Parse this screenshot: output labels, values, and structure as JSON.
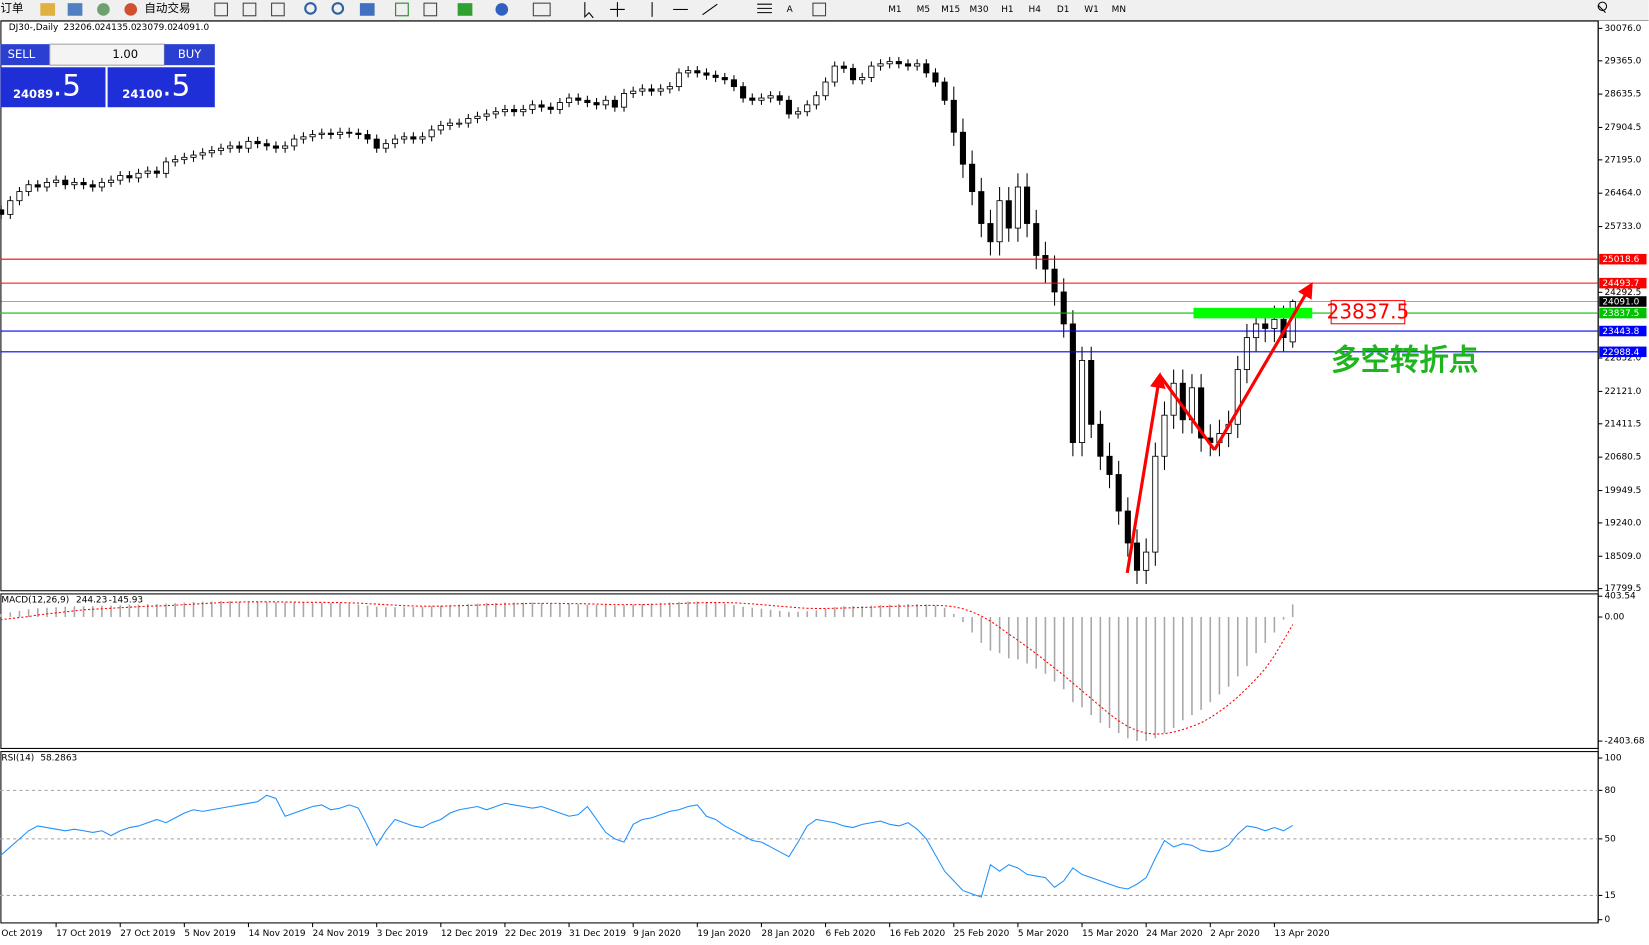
{
  "toolbar": {
    "order": "订单",
    "auto_trading": "自动交易",
    "timeframes": [
      "M1",
      "M5",
      "M15",
      "M30",
      "H1",
      "H4",
      "D1",
      "W1",
      "MN"
    ]
  },
  "trade_panel": {
    "sell": "SELL",
    "buy": "BUY",
    "lots": "1.00",
    "bid": {
      "main": "24089",
      "pips": ".5"
    },
    "ask": {
      "main": "24100",
      "pips": ".5"
    }
  },
  "annotations": {
    "price_box": "23837.5",
    "note": "多空转折点"
  },
  "chart_data": [
    {
      "type": "candlestick",
      "title": "DJ30-,Daily",
      "ohlc_labels": [
        "23206.0",
        "24135.0",
        "23079.0",
        "24091.0"
      ],
      "categories": [
        "Oct 2019",
        null,
        null,
        null,
        null,
        null,
        null,
        "17 Oct 2019",
        null,
        null,
        null,
        null,
        null,
        null,
        "27 Oct 2019",
        null,
        null,
        null,
        null,
        null,
        null,
        "5 Nov 2019",
        null,
        null,
        null,
        null,
        null,
        null,
        "14 Nov 2019",
        null,
        null,
        null,
        null,
        null,
        null,
        "24 Nov 2019",
        null,
        null,
        null,
        null,
        null,
        null,
        "3 Dec 2019",
        null,
        null,
        null,
        null,
        null,
        null,
        "12 Dec 2019",
        null,
        null,
        null,
        null,
        null,
        null,
        "22 Dec 2019",
        null,
        null,
        null,
        null,
        null,
        null,
        "31 Dec 2019",
        null,
        null,
        null,
        null,
        null,
        null,
        "9 Jan 2020",
        null,
        null,
        null,
        null,
        null,
        null,
        "19 Jan 2020",
        null,
        null,
        null,
        null,
        null,
        null,
        "28 Jan 2020",
        null,
        null,
        null,
        null,
        null,
        null,
        "6 Feb 2020",
        null,
        null,
        null,
        null,
        null,
        null,
        "16 Feb 2020",
        null,
        null,
        null,
        null,
        null,
        null,
        "25 Feb 2020",
        null,
        null,
        null,
        null,
        null,
        null,
        "5 Mar 2020",
        null,
        null,
        null,
        null,
        null,
        null,
        "15 Mar 2020",
        null,
        null,
        null,
        null,
        null,
        null,
        "24 Mar 2020",
        null,
        null,
        null,
        null,
        null,
        null,
        "2 Apr 2020",
        null,
        null,
        null,
        null,
        null,
        null,
        "13 Apr 2020",
        null,
        null
      ],
      "open": [
        26200,
        26100,
        26000,
        26300,
        26500,
        26650,
        26600,
        26700,
        26750,
        26650,
        26700,
        26650,
        26600,
        26700,
        26750,
        26850,
        26800,
        26900,
        26950,
        26900,
        27150,
        27200,
        27250,
        27300,
        27350,
        27400,
        27450,
        27500,
        27450,
        27600,
        27550,
        27500,
        27450,
        27500,
        27650,
        27700,
        27750,
        27780,
        27750,
        27800,
        27780,
        27750,
        27650,
        27450,
        27550,
        27650,
        27700,
        27650,
        27700,
        27850,
        27950,
        28000,
        28000,
        28100,
        28150,
        28200,
        28250,
        28300,
        28250,
        28300,
        28400,
        28350,
        28300,
        28450,
        28550,
        28500,
        28450,
        28400,
        28500,
        28350,
        28650,
        28700,
        28750,
        28700,
        28750,
        28800,
        29100,
        29150,
        29100,
        29050,
        29000,
        28950,
        28800,
        28550,
        28500,
        28550,
        28600,
        28500,
        28200,
        28250,
        28400,
        28600,
        28900,
        29250,
        29200,
        28950,
        29000,
        29250,
        29300,
        29350,
        29300,
        29250,
        29300,
        29100,
        28900,
        28500,
        27800,
        27100,
        26500,
        25800,
        25400,
        26300,
        25700,
        26600,
        25800,
        25100,
        24800,
        24300,
        23600,
        21000,
        22800,
        21400,
        20700,
        20300,
        19500,
        18800,
        18200,
        18600,
        20700,
        21600,
        22300,
        21500,
        22200,
        21100,
        21000,
        21200,
        21400,
        22600,
        23300,
        23600,
        23500,
        23700,
        23206
      ],
      "high": [
        26300,
        26200,
        26400,
        26600,
        26750,
        26750,
        26800,
        26850,
        26850,
        26800,
        26800,
        26750,
        26800,
        26850,
        26950,
        26950,
        27000,
        27050,
        27050,
        27250,
        27300,
        27350,
        27400,
        27450,
        27500,
        27550,
        27600,
        27600,
        27700,
        27700,
        27650,
        27600,
        27600,
        27750,
        27800,
        27850,
        27880,
        27880,
        27900,
        27900,
        27880,
        27850,
        27750,
        27650,
        27750,
        27800,
        27800,
        27800,
        27950,
        28050,
        28100,
        28100,
        28200,
        28250,
        28300,
        28350,
        28400,
        28400,
        28400,
        28500,
        28500,
        28450,
        28550,
        28650,
        28650,
        28600,
        28550,
        28600,
        28600,
        28750,
        28800,
        28850,
        28850,
        28850,
        28900,
        29200,
        29250,
        29250,
        29200,
        29150,
        29100,
        29050,
        28900,
        28650,
        28650,
        28700,
        28700,
        28600,
        28350,
        28500,
        28700,
        29000,
        29350,
        29350,
        29300,
        29100,
        29350,
        29400,
        29450,
        29450,
        29400,
        29400,
        29400,
        29200,
        29000,
        28800,
        28100,
        27400,
        26800,
        26100,
        26600,
        26600,
        26900,
        26900,
        26100,
        25400,
        25100,
        24600,
        23900,
        23100,
        23100,
        21700,
        21000,
        20600,
        19800,
        19100,
        18900,
        21000,
        21900,
        22600,
        22600,
        22500,
        22500,
        21400,
        21500,
        21700,
        22900,
        23600,
        23900,
        23900,
        24000,
        24000,
        24135
      ],
      "low": [
        26000,
        25900,
        25900,
        26200,
        26400,
        26500,
        26500,
        26600,
        26550,
        26550,
        26550,
        26500,
        26500,
        26600,
        26650,
        26700,
        26700,
        26800,
        26800,
        26800,
        27050,
        27100,
        27150,
        27200,
        27250,
        27300,
        27350,
        27350,
        27350,
        27450,
        27400,
        27350,
        27350,
        27400,
        27550,
        27600,
        27650,
        27650,
        27650,
        27680,
        27650,
        27550,
        27350,
        27350,
        27450,
        27550,
        27550,
        27550,
        27600,
        27750,
        27850,
        27900,
        27900,
        28000,
        28050,
        28100,
        28150,
        28150,
        28150,
        28200,
        28250,
        28200,
        28200,
        28350,
        28400,
        28350,
        28300,
        28300,
        28250,
        28250,
        28550,
        28600,
        28600,
        28600,
        28650,
        28700,
        29000,
        29000,
        28950,
        28900,
        28850,
        28700,
        28450,
        28400,
        28400,
        28450,
        28400,
        28100,
        28100,
        28150,
        28300,
        28500,
        28800,
        29100,
        28850,
        28850,
        28900,
        29150,
        29200,
        29200,
        29150,
        29150,
        29000,
        28800,
        28400,
        27500,
        26800,
        26200,
        25500,
        25100,
        25100,
        25400,
        25400,
        25500,
        24800,
        24500,
        24000,
        23300,
        20700,
        20700,
        21100,
        20400,
        20000,
        19200,
        18500,
        17900,
        17900,
        18300,
        20400,
        21300,
        21200,
        21200,
        20800,
        20700,
        20700,
        20900,
        21100,
        22300,
        23000,
        23200,
        23200,
        23000,
        23079
      ],
      "close": [
        26100,
        26000,
        26300,
        26500,
        26650,
        26600,
        26700,
        26750,
        26650,
        26700,
        26650,
        26600,
        26700,
        26750,
        26850,
        26800,
        26900,
        26950,
        26900,
        27150,
        27200,
        27250,
        27300,
        27350,
        27400,
        27450,
        27500,
        27450,
        27600,
        27550,
        27500,
        27450,
        27500,
        27650,
        27700,
        27750,
        27780,
        27750,
        27800,
        27780,
        27750,
        27650,
        27450,
        27550,
        27650,
        27700,
        27650,
        27700,
        27850,
        27950,
        28000,
        28000,
        28100,
        28150,
        28200,
        28250,
        28300,
        28250,
        28300,
        28400,
        28350,
        28300,
        28450,
        28550,
        28500,
        28450,
        28400,
        28500,
        28350,
        28650,
        28700,
        28750,
        28700,
        28750,
        28800,
        29100,
        29150,
        29100,
        29050,
        29000,
        28950,
        28800,
        28550,
        28500,
        28550,
        28600,
        28500,
        28200,
        28250,
        28400,
        28600,
        28900,
        29250,
        29200,
        28950,
        29000,
        29250,
        29300,
        29350,
        29300,
        29250,
        29300,
        29100,
        28900,
        28500,
        27800,
        27100,
        26500,
        25800,
        25400,
        26300,
        25700,
        26600,
        25800,
        25100,
        24800,
        24300,
        23600,
        21000,
        22800,
        21400,
        20700,
        20300,
        19500,
        18800,
        18200,
        18600,
        20700,
        21600,
        22300,
        21500,
        22200,
        21100,
        21000,
        21200,
        21400,
        22600,
        23300,
        23600,
        23500,
        23700,
        23300,
        24091
      ],
      "up_color": "#ffffff",
      "down_color": "#000000",
      "ylim": [
        17753,
        30237
      ],
      "yticks": [
        {
          "value": 30076,
          "label": "30076.0"
        },
        {
          "value": 29365,
          "label": "29365.0"
        },
        28635.5,
        27904.5,
        {
          "value": 27195,
          "label": "27195.0"
        },
        {
          "value": 26464,
          "label": "26464.0"
        },
        {
          "value": 25733,
          "label": "25733.0"
        },
        24292.5,
        {
          "value": 22852,
          "label": "22852.0"
        },
        {
          "value": 22121,
          "label": "22121.0"
        },
        21411.5,
        20680.5,
        19949.5,
        {
          "value": 19240,
          "label": "19240.0"
        },
        {
          "value": 18509,
          "label": "18509.0"
        },
        17799.5
      ],
      "levels": [
        {
          "value": 25018.6,
          "color": "#ff0000"
        },
        {
          "value": 24493.7,
          "color": "#ff0000"
        },
        {
          "value": 24091,
          "label": "24091.0",
          "color": "#000000"
        },
        {
          "value": 23837.5,
          "color": "#00c000"
        },
        {
          "value": 23443.8,
          "color": "#0000ff"
        },
        {
          "value": 22988.4,
          "color": "#0000ff"
        }
      ]
    },
    {
      "type": "macd",
      "title": "MACD(12,26,9)",
      "histogram": [
        40,
        60,
        90,
        120,
        150,
        170,
        180,
        190,
        200,
        210,
        210,
        210,
        220,
        220,
        230,
        240,
        240,
        250,
        250,
        260,
        270,
        280,
        290,
        300,
        300,
        310,
        310,
        300,
        300,
        300,
        290,
        290,
        280,
        280,
        280,
        280,
        280,
        270,
        270,
        260,
        240,
        220,
        200,
        190,
        190,
        190,
        190,
        200,
        210,
        220,
        230,
        240,
        250,
        260,
        270,
        270,
        280,
        280,
        280,
        280,
        270,
        260,
        260,
        260,
        250,
        240,
        230,
        230,
        220,
        230,
        240,
        250,
        260,
        270,
        280,
        290,
        300,
        300,
        290,
        280,
        260,
        230,
        200,
        180,
        160,
        140,
        120,
        100,
        100,
        110,
        130,
        160,
        190,
        210,
        210,
        210,
        220,
        230,
        240,
        250,
        250,
        250,
        240,
        220,
        180,
        60,
        -100,
        -300,
        -500,
        -650,
        -700,
        -800,
        -820,
        -900,
        -1000,
        -1100,
        -1250,
        -1400,
        -1650,
        -1750,
        -1900,
        -2050,
        -2150,
        -2250,
        -2350,
        -2400,
        -2400,
        -2350,
        -2250,
        -2150,
        -2000,
        -1900,
        -1800,
        -1650,
        -1500,
        -1350,
        -1150,
        -950,
        -700,
        -500,
        -300,
        -50,
        244.23
      ],
      "signal": [
        -60,
        -50,
        -30,
        -10,
        10,
        40,
        60,
        80,
        100,
        120,
        140,
        150,
        160,
        170,
        180,
        190,
        200,
        210,
        215,
        220,
        230,
        240,
        250,
        260,
        270,
        280,
        285,
        290,
        295,
        295,
        295,
        295,
        290,
        290,
        285,
        285,
        285,
        280,
        280,
        275,
        270,
        260,
        250,
        240,
        230,
        220,
        215,
        210,
        210,
        210,
        215,
        220,
        225,
        230,
        240,
        245,
        250,
        255,
        260,
        265,
        265,
        265,
        265,
        260,
        260,
        255,
        250,
        245,
        240,
        240,
        240,
        240,
        245,
        250,
        255,
        260,
        270,
        275,
        280,
        280,
        280,
        275,
        265,
        255,
        240,
        225,
        210,
        195,
        180,
        170,
        165,
        165,
        170,
        175,
        180,
        185,
        190,
        200,
        205,
        210,
        215,
        220,
        225,
        225,
        220,
        200,
        160,
        100,
        20,
        -80,
        -200,
        -330,
        -450,
        -580,
        -710,
        -850,
        -990,
        -1130,
        -1280,
        -1430,
        -1580,
        -1730,
        -1880,
        -2010,
        -2120,
        -2200,
        -2250,
        -2270,
        -2260,
        -2230,
        -2180,
        -2120,
        -2050,
        -1950,
        -1830,
        -1700,
        -1550,
        -1380,
        -1200,
        -1000,
        -750,
        -450,
        -145.93
      ],
      "histogram_color": "#a8a8a8",
      "signal_color": "#ff0000",
      "ylim": [
        -2546,
        448
      ],
      "yticks": [
        403.54,
        {
          "value": 0,
          "label": "0.00"
        },
        -2403.68
      ]
    },
    {
      "type": "line",
      "title": "RSI(14)",
      "values": [
        38,
        40,
        45,
        50,
        55,
        58,
        57,
        56,
        55,
        56,
        55,
        54,
        55,
        52,
        55,
        57,
        58,
        60,
        62,
        60,
        63,
        66,
        68,
        67,
        68,
        69,
        70,
        71,
        72,
        73,
        77,
        75,
        64,
        66,
        68,
        70,
        71,
        68,
        69,
        71,
        69,
        58,
        46,
        55,
        62,
        60,
        58,
        57,
        60,
        62,
        66,
        68,
        69,
        70,
        68,
        70,
        72,
        71,
        70,
        69,
        70,
        68,
        66,
        64,
        65,
        70,
        62,
        54,
        50,
        48,
        59,
        62,
        63,
        65,
        67,
        68,
        70,
        71,
        64,
        62,
        58,
        55,
        52,
        49,
        48,
        45,
        42,
        39,
        48,
        58,
        62,
        61,
        60,
        58,
        57,
        59,
        60,
        61,
        59,
        58,
        60,
        56,
        50,
        40,
        30,
        24,
        18,
        16,
        14,
        34,
        30,
        34,
        32,
        28,
        27,
        26,
        20,
        24,
        32,
        28,
        26,
        24,
        22,
        20,
        19,
        22,
        26,
        38,
        49,
        45,
        47,
        46,
        43,
        42,
        43,
        46,
        53,
        58,
        57,
        55,
        57,
        55,
        58.2863
      ],
      "color": "#1e90ff",
      "ylim": [
        -2,
        104
      ],
      "yticks": [
        100,
        80,
        50,
        15,
        0
      ],
      "levels": [
        80,
        50,
        15
      ]
    }
  ]
}
